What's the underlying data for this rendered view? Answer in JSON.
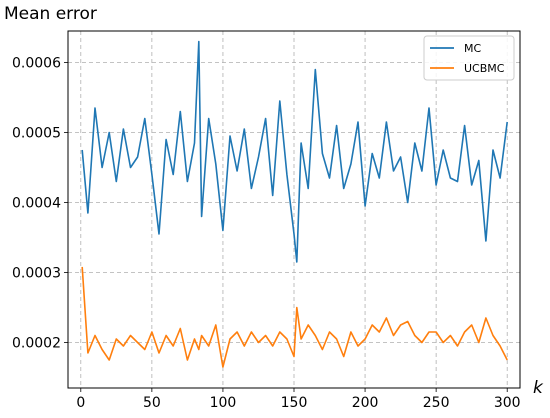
{
  "chart_data": {
    "type": "line",
    "title": "",
    "ylabel": "Mean error",
    "xlabel": "k",
    "xlim": [
      -9,
      309
    ],
    "ylim": [
      0.000135,
      0.000645
    ],
    "xticks": [
      0,
      50,
      100,
      150,
      200,
      250,
      300
    ],
    "yticks": [
      0.0002,
      0.0003,
      0.0004,
      0.0005,
      0.0006
    ],
    "ytick_labels": [
      "0.0002",
      "0.0003",
      "0.0004",
      "0.0005",
      "0.0006"
    ],
    "grid": true,
    "legend": "top-right",
    "x": [
      1,
      5,
      10,
      15,
      20,
      25,
      30,
      35,
      40,
      45,
      50,
      55,
      60,
      65,
      70,
      75,
      80,
      83,
      85,
      90,
      95,
      100,
      105,
      110,
      115,
      120,
      125,
      130,
      135,
      140,
      145,
      150,
      152,
      155,
      160,
      165,
      170,
      175,
      180,
      185,
      190,
      195,
      200,
      205,
      210,
      215,
      220,
      225,
      230,
      235,
      240,
      245,
      250,
      255,
      260,
      265,
      270,
      275,
      280,
      285,
      290,
      295,
      300
    ],
    "series": [
      {
        "name": "MC",
        "color": "#1f77b4",
        "values": [
          0.000475,
          0.000385,
          0.000535,
          0.00045,
          0.0005,
          0.00043,
          0.000505,
          0.00045,
          0.000465,
          0.00052,
          0.00044,
          0.000355,
          0.00049,
          0.00044,
          0.00053,
          0.00043,
          0.000485,
          0.00063,
          0.00038,
          0.00052,
          0.000455,
          0.00036,
          0.000495,
          0.000445,
          0.000505,
          0.00042,
          0.000465,
          0.00052,
          0.00041,
          0.000545,
          0.00044,
          0.000355,
          0.000315,
          0.000485,
          0.00042,
          0.00059,
          0.00047,
          0.000435,
          0.00051,
          0.00042,
          0.000455,
          0.000515,
          0.000395,
          0.00047,
          0.000435,
          0.000515,
          0.000445,
          0.000465,
          0.0004,
          0.000485,
          0.000445,
          0.000535,
          0.000425,
          0.000475,
          0.000435,
          0.00043,
          0.00051,
          0.000425,
          0.00046,
          0.000345,
          0.000475,
          0.000435,
          0.000515
        ]
      },
      {
        "name": "UCBMC",
        "color": "#ff7f0e",
        "values": [
          0.000308,
          0.000185,
          0.00021,
          0.00019,
          0.000175,
          0.000205,
          0.000195,
          0.00021,
          0.0002,
          0.00019,
          0.000215,
          0.000185,
          0.00021,
          0.000195,
          0.00022,
          0.000175,
          0.000205,
          0.00019,
          0.00021,
          0.000195,
          0.000225,
          0.000165,
          0.000205,
          0.000215,
          0.000195,
          0.000215,
          0.0002,
          0.00021,
          0.000195,
          0.000215,
          0.000205,
          0.00018,
          0.00025,
          0.000205,
          0.000225,
          0.00021,
          0.00019,
          0.000215,
          0.000205,
          0.00018,
          0.000215,
          0.000195,
          0.000205,
          0.000225,
          0.000215,
          0.000235,
          0.00021,
          0.000225,
          0.00023,
          0.00021,
          0.0002,
          0.000215,
          0.000215,
          0.0002,
          0.00021,
          0.000195,
          0.000215,
          0.000225,
          0.0002,
          0.000235,
          0.00021,
          0.000195,
          0.000175
        ]
      }
    ]
  }
}
